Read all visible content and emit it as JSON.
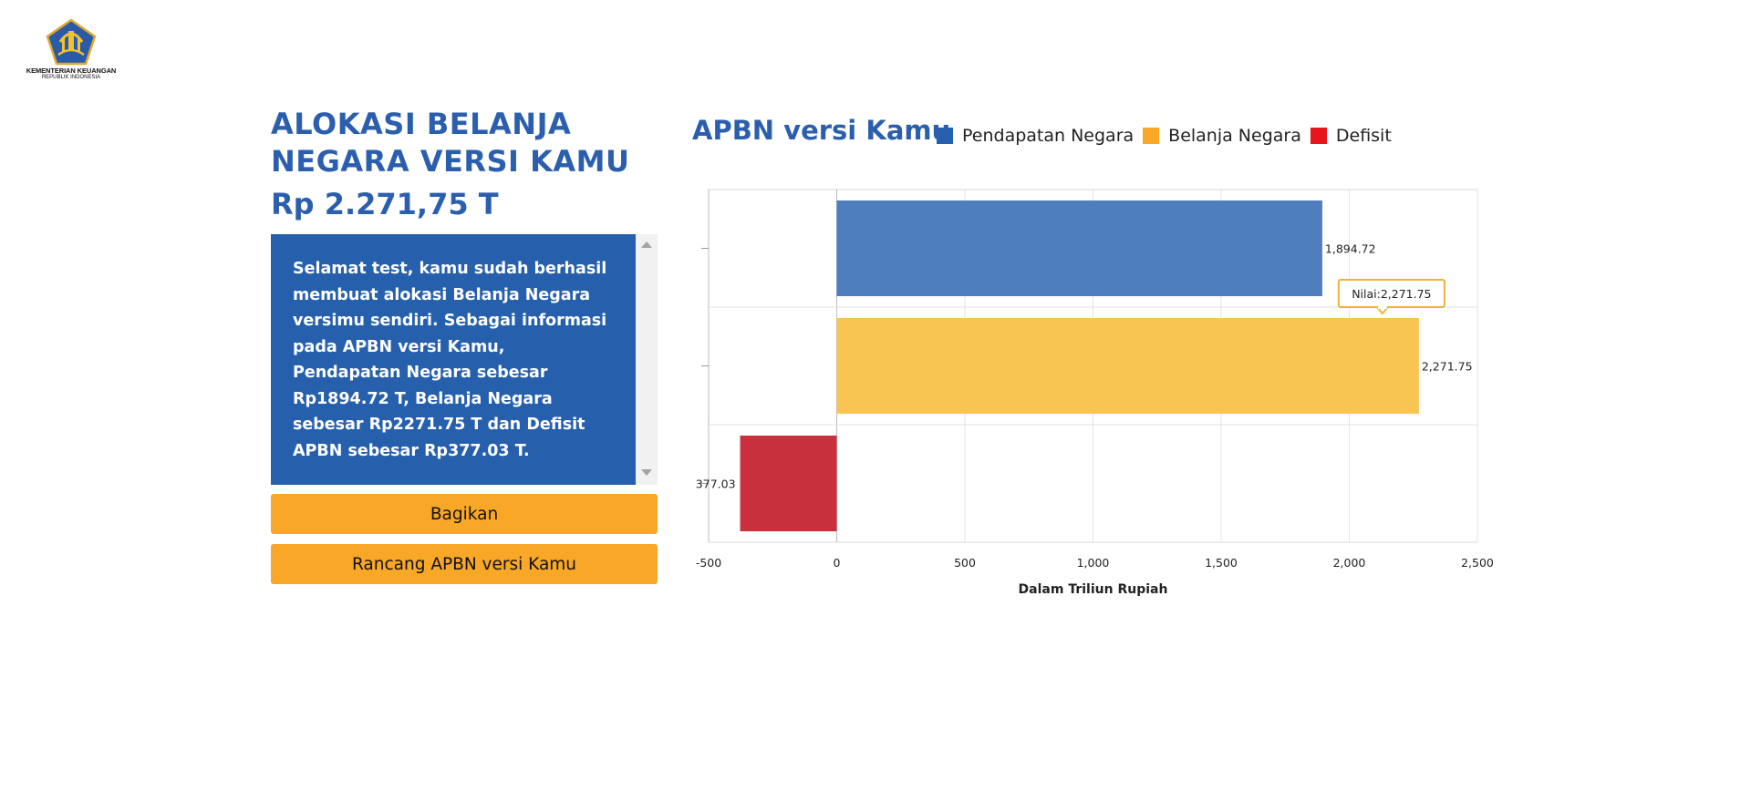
{
  "logo": {
    "org": "KEMENTERIAN KEUANGAN",
    "sub": "REPUBLIK INDONESIA"
  },
  "left": {
    "title_line1": "ALOKASI BELANJA",
    "title_line2": "NEGARA VERSI KAMU",
    "amount": "Rp 2.271,75 T",
    "message_lines": [
      "Selamat test, kamu sudah berhasil",
      "membuat alokasi Belanja Negara",
      "versimu sendiri. Sebagai informasi",
      "pada APBN versi Kamu,",
      "Pendapatan Negara sebesar",
      "Rp1894.72 T, Belanja Negara",
      "sebesar Rp2271.75 T dan Defisit",
      "APBN sebesar Rp377.03 T."
    ],
    "share_button": "Bagikan",
    "design_button": "Rancang APBN versi Kamu"
  },
  "colors": {
    "brand_blue": "#2b5fae",
    "button_orange": "#f9a727",
    "pendapatan": "#4f7ebe",
    "belanja": "#f8c452",
    "defisit": "#c9303e"
  },
  "chart_data": {
    "type": "bar",
    "orientation": "horizontal",
    "title": "APBN versi Kamu",
    "xlabel": "Dalam Triliun Rupiah",
    "xlim": [
      -500,
      2500
    ],
    "x_ticks": [
      "-500",
      "0",
      "500",
      "1,000",
      "1,500",
      "2,000",
      "2,500"
    ],
    "grid": true,
    "legend_position": "top",
    "legend": [
      {
        "label": "Pendapatan Negara",
        "color": "#2660ad"
      },
      {
        "label": "Belanja Negara",
        "color": "#f9a727"
      },
      {
        "label": "Defisit",
        "color": "#e8141e"
      }
    ],
    "series": [
      {
        "name": "Pendapatan Negara",
        "value": 1894.72,
        "label": "1,894.72",
        "color": "#4f7ebe"
      },
      {
        "name": "Belanja Negara",
        "value": 2271.75,
        "label": "2,271.75",
        "color": "#f8c452"
      },
      {
        "name": "Defisit",
        "value": -377.03,
        "label": "377.03",
        "color": "#c9303e"
      }
    ],
    "tooltip": "Nilai:2,271.75"
  }
}
